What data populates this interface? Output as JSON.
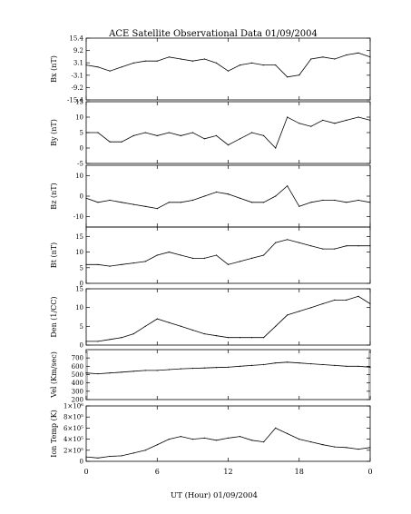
{
  "chart_data": {
    "type": "line",
    "title": "ACE Satellite Observational Data   01/09/2004",
    "xlabel": "UT (Hour)   01/09/2004",
    "x_ticks": [
      "0",
      "6",
      "12",
      "18",
      "0"
    ],
    "xlim": [
      0,
      24
    ],
    "panels": [
      {
        "ylabel": "Bx (nT)",
        "ylim": [
          -15.4,
          15.4
        ],
        "yticks": [
          -15.4,
          -9.2,
          -3.1,
          3.1,
          9.2,
          15.4
        ],
        "ytick_labels": [
          "-15.4",
          "-9.2",
          "-3.1",
          "3.1",
          "9.2",
          "15.4"
        ],
        "x": [
          0,
          1,
          2,
          3,
          4,
          5,
          6,
          7,
          8,
          9,
          10,
          11,
          12,
          13,
          14,
          15,
          16,
          17,
          18,
          19,
          20,
          21,
          22,
          23,
          24
        ],
        "values": [
          2,
          1,
          -1,
          1,
          3,
          4,
          4,
          6,
          5,
          4,
          5,
          3,
          -1,
          2,
          3,
          2,
          2,
          -4,
          -3,
          5,
          6,
          5,
          7,
          8,
          6
        ]
      },
      {
        "ylabel": "By (nT)",
        "ylim": [
          -5,
          15
        ],
        "yticks": [
          -5,
          0,
          5,
          10,
          15
        ],
        "ytick_labels": [
          "-5",
          "0",
          "5",
          "10",
          "15"
        ],
        "x": [
          0,
          1,
          2,
          3,
          4,
          5,
          6,
          7,
          8,
          9,
          10,
          11,
          12,
          13,
          14,
          15,
          16,
          17,
          18,
          19,
          20,
          21,
          22,
          23,
          24
        ],
        "values": [
          5,
          5,
          2,
          2,
          4,
          5,
          4,
          5,
          4,
          5,
          3,
          4,
          1,
          3,
          5,
          4,
          0,
          10,
          8,
          7,
          9,
          8,
          9,
          10,
          9
        ]
      },
      {
        "ylabel": "Bz (nT)",
        "ylim": [
          -15,
          15
        ],
        "yticks": [
          -10,
          0,
          10
        ],
        "ytick_labels": [
          "-10",
          "0",
          "10"
        ],
        "x": [
          0,
          1,
          2,
          3,
          4,
          5,
          6,
          7,
          8,
          9,
          10,
          11,
          12,
          13,
          14,
          15,
          16,
          17,
          18,
          19,
          20,
          21,
          22,
          23,
          24
        ],
        "values": [
          -1,
          -3,
          -2,
          -3,
          -4,
          -5,
          -6,
          -3,
          -3,
          -2,
          0,
          2,
          1,
          -1,
          -3,
          -3,
          0,
          5,
          -5,
          -3,
          -2,
          -2,
          -3,
          -2,
          -3
        ]
      },
      {
        "ylabel": "Bt (nT)",
        "ylim": [
          0,
          18
        ],
        "yticks": [
          0,
          5,
          10,
          15
        ],
        "ytick_labels": [
          "0",
          "5",
          "10",
          "15"
        ],
        "x": [
          0,
          1,
          2,
          3,
          4,
          5,
          6,
          7,
          8,
          9,
          10,
          11,
          12,
          13,
          14,
          15,
          16,
          17,
          18,
          19,
          20,
          21,
          22,
          23,
          24
        ],
        "values": [
          6,
          6,
          5.5,
          6,
          6.5,
          7,
          9,
          10,
          9,
          8,
          8,
          9,
          6,
          7,
          8,
          9,
          13,
          14,
          13,
          12,
          11,
          11,
          12,
          12,
          12
        ]
      },
      {
        "ylabel": "Den (1/CC)",
        "ylim": [
          0,
          15
        ],
        "yticks": [
          0,
          5,
          10,
          15
        ],
        "ytick_labels": [
          "0",
          "5",
          "10",
          "15"
        ],
        "x": [
          0,
          1,
          2,
          3,
          4,
          5,
          6,
          7,
          8,
          9,
          10,
          11,
          12,
          13,
          14,
          15,
          16,
          17,
          18,
          19,
          20,
          21,
          22,
          23,
          24
        ],
        "values": [
          1,
          1,
          1.5,
          2,
          3,
          5,
          7,
          6,
          5,
          4,
          3,
          2.5,
          2,
          2,
          2,
          2,
          5,
          8,
          9,
          10,
          11,
          12,
          12,
          13,
          11
        ]
      },
      {
        "ylabel": "Vel (Km/sec)",
        "ylim": [
          200,
          800
        ],
        "yticks": [
          200,
          300,
          400,
          500,
          600,
          700
        ],
        "ytick_labels": [
          "200",
          "300",
          "400",
          "500",
          "600",
          "700"
        ],
        "x": [
          0,
          1,
          2,
          3,
          4,
          5,
          6,
          7,
          8,
          9,
          10,
          11,
          12,
          13,
          14,
          15,
          16,
          17,
          18,
          19,
          20,
          21,
          22,
          23,
          24
        ],
        "values": [
          520,
          510,
          520,
          530,
          540,
          550,
          550,
          560,
          570,
          575,
          580,
          585,
          590,
          600,
          610,
          620,
          640,
          650,
          640,
          630,
          620,
          610,
          600,
          600,
          590
        ]
      },
      {
        "ylabel": "Ion Temp (K)",
        "ylim": [
          0,
          1000000
        ],
        "yticks": [
          0,
          200000,
          400000,
          600000,
          800000,
          1000000
        ],
        "ytick_labels": [
          "0",
          "2×10⁵",
          "4×10⁵",
          "6×10⁵",
          "8×10⁵",
          "1×10⁶"
        ],
        "x": [
          0,
          1,
          2,
          3,
          4,
          5,
          6,
          7,
          8,
          9,
          10,
          11,
          12,
          13,
          14,
          15,
          16,
          17,
          18,
          19,
          20,
          21,
          22,
          23,
          24
        ],
        "values": [
          80000,
          60000,
          90000,
          100000,
          150000,
          200000,
          300000,
          400000,
          450000,
          400000,
          420000,
          380000,
          420000,
          450000,
          380000,
          350000,
          600000,
          500000,
          400000,
          350000,
          300000,
          260000,
          250000,
          220000,
          250000
        ]
      }
    ]
  }
}
